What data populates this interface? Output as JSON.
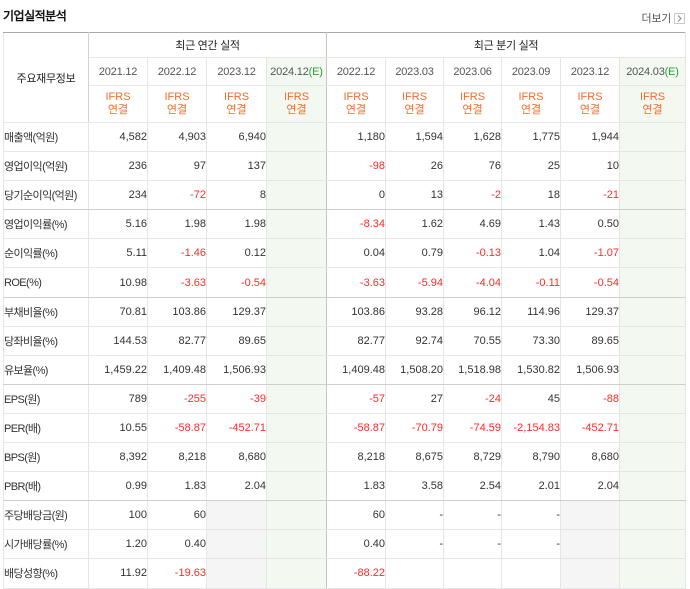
{
  "section": {
    "title": "기업실적분석",
    "more_label": "더보기",
    "more_icon": "chevron-right-icon"
  },
  "colors": {
    "basis_orange": "#ef6c2e",
    "negative_red": "#ff2a2a",
    "estimate_green": "#2a9d3f",
    "estimate_bg": "#f3f9f1"
  },
  "table": {
    "corner_label": "주요재무정보",
    "annual_group": "최근 연간 실적",
    "quarter_group": "최근 분기 실적",
    "basis": {
      "line1": "IFRS",
      "line2": "연결"
    },
    "annual_periods": [
      {
        "date": "2021.12"
      },
      {
        "date": "2022.12"
      },
      {
        "date": "2023.12"
      },
      {
        "date": "2024.12",
        "est": "(E)"
      }
    ],
    "quarter_periods": [
      {
        "date": "2022.12"
      },
      {
        "date": "2023.03"
      },
      {
        "date": "2023.06"
      },
      {
        "date": "2023.09"
      },
      {
        "date": "2023.12"
      },
      {
        "date": "2024.03",
        "est": "(E)"
      }
    ],
    "rows": [
      {
        "label": "매출액(억원)",
        "annual": [
          "4,582",
          "4,903",
          "6,940",
          null
        ],
        "quarter": [
          "1,180",
          "1,594",
          "1,628",
          "1,775",
          "1,944",
          null
        ]
      },
      {
        "label": "영업이익(억원)",
        "annual": [
          "236",
          "97",
          "137",
          null
        ],
        "quarter": [
          "-98",
          "26",
          "76",
          "25",
          "10",
          null
        ]
      },
      {
        "label": "당기순이익(억원)",
        "annual": [
          "234",
          "-72",
          "8",
          null
        ],
        "quarter": [
          "0",
          "13",
          "-2",
          "18",
          "-21",
          null
        ]
      },
      {
        "label": "영업이익률(%)",
        "annual": [
          "5.16",
          "1.98",
          "1.98",
          null
        ],
        "quarter": [
          "-8.34",
          "1.62",
          "4.69",
          "1.43",
          "0.50",
          null
        ]
      },
      {
        "label": "순이익률(%)",
        "annual": [
          "5.11",
          "-1.46",
          "0.12",
          null
        ],
        "quarter": [
          "0.04",
          "0.79",
          "-0.13",
          "1.04",
          "-1.07",
          null
        ]
      },
      {
        "label": "ROE(%)",
        "annual": [
          "10.98",
          "-3.63",
          "-0.54",
          null
        ],
        "quarter": [
          "-3.63",
          "-5.94",
          "-4.04",
          "-0.11",
          "-0.54",
          null
        ]
      },
      {
        "label": "부채비율(%)",
        "annual": [
          "70.81",
          "103.86",
          "129.37",
          null
        ],
        "quarter": [
          "103.86",
          "93.28",
          "96.12",
          "114.96",
          "129.37",
          null
        ]
      },
      {
        "label": "당좌비율(%)",
        "annual": [
          "144.53",
          "82.77",
          "89.65",
          null
        ],
        "quarter": [
          "82.77",
          "92.74",
          "70.55",
          "73.30",
          "89.65",
          null
        ]
      },
      {
        "label": "유보율(%)",
        "annual": [
          "1,459.22",
          "1,409.48",
          "1,506.93",
          null
        ],
        "quarter": [
          "1,409.48",
          "1,508.20",
          "1,518.98",
          "1,530.82",
          "1,506.93",
          null
        ]
      },
      {
        "label": "EPS(원)",
        "annual": [
          "789",
          "-255",
          "-39",
          null
        ],
        "quarter": [
          "-57",
          "27",
          "-24",
          "45",
          "-88",
          null
        ]
      },
      {
        "label": "PER(배)",
        "annual": [
          "10.55",
          "-58.87",
          "-452.71",
          null
        ],
        "quarter": [
          "-58.87",
          "-70.79",
          "-74.59",
          "-2,154.83",
          "-452.71",
          null
        ]
      },
      {
        "label": "BPS(원)",
        "annual": [
          "8,392",
          "8,218",
          "8,680",
          null
        ],
        "quarter": [
          "8,218",
          "8,675",
          "8,729",
          "8,790",
          "8,680",
          null
        ]
      },
      {
        "label": "PBR(배)",
        "annual": [
          "0.99",
          "1.83",
          "2.04",
          null
        ],
        "quarter": [
          "1.83",
          "3.58",
          "2.54",
          "2.01",
          "2.04",
          null
        ]
      },
      {
        "label": "주당배당금(원)",
        "annual": [
          "100",
          "60",
          null,
          null
        ],
        "quarter": [
          "60",
          "-",
          "-",
          "-",
          null,
          null
        ]
      },
      {
        "label": "시가배당률(%)",
        "annual": [
          "1.20",
          "0.40",
          null,
          null
        ],
        "quarter": [
          "0.40",
          "-",
          "-",
          "-",
          null,
          null
        ]
      },
      {
        "label": "배당성향(%)",
        "annual": [
          "11.92",
          "-19.63",
          null,
          null
        ],
        "quarter": [
          "-88.22",
          "",
          "",
          "",
          null,
          null
        ]
      }
    ]
  }
}
